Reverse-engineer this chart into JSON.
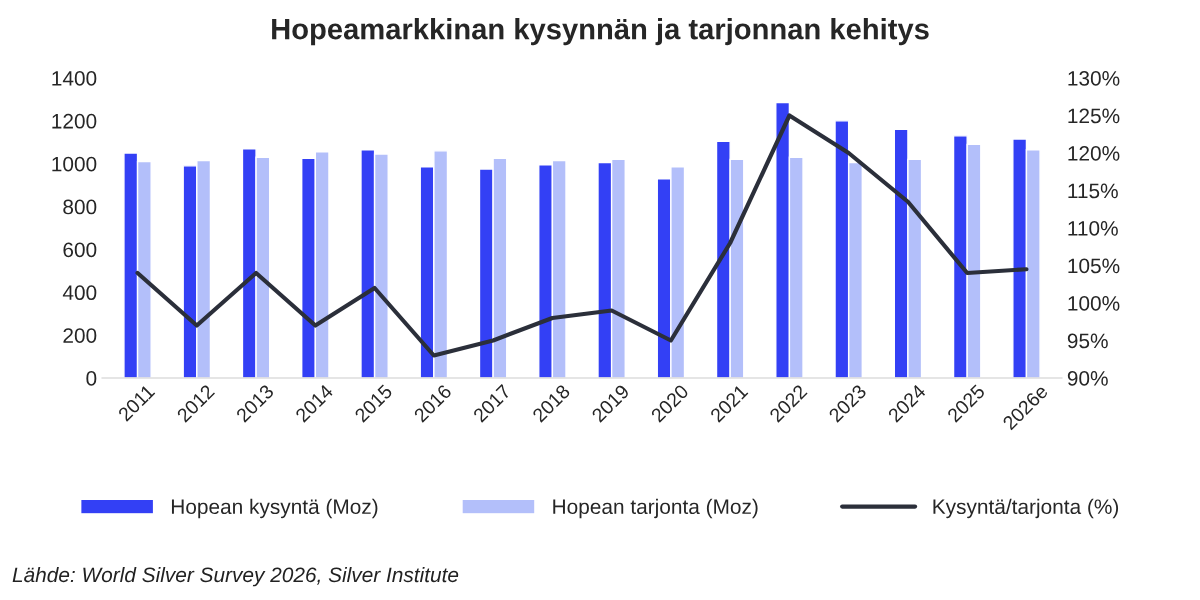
{
  "chart_data": {
    "type": "bar",
    "title": "Hopeamarkkinan kysynnän ja tarjonnan kehitys",
    "categories": [
      "2011",
      "2012",
      "2013",
      "2014",
      "2015",
      "2016",
      "2017",
      "2018",
      "2019",
      "2020",
      "2021",
      "2022",
      "2023",
      "2024",
      "2025",
      "2026e"
    ],
    "series": [
      {
        "name": "Hopean kysyntä (Moz)",
        "color": "#3340f5",
        "values": [
          1050,
          990,
          1070,
          1025,
          1065,
          985,
          975,
          995,
          1005,
          930,
          1105,
          1285,
          1200,
          1160,
          1130,
          1115
        ]
      },
      {
        "name": "Hopean tarjonta (Moz)",
        "color": "#b3bffa",
        "values": [
          1010,
          1015,
          1030,
          1055,
          1045,
          1060,
          1025,
          1015,
          1020,
          985,
          1020,
          1030,
          1005,
          1020,
          1090,
          1065
        ]
      },
      {
        "name": "Kysyntä/tarjonta (%)",
        "type": "line",
        "axis": "y2",
        "color": "#2b2f3a",
        "values": [
          104,
          97,
          104,
          97,
          102,
          93,
          95,
          98,
          99,
          95,
          108,
          125,
          120,
          113.5,
          104,
          104.5
        ]
      }
    ],
    "ylim": [
      0,
      1400
    ],
    "yticks": [
      0,
      200,
      400,
      600,
      800,
      1000,
      1200,
      1400
    ],
    "y2lim": [
      90,
      130
    ],
    "y2ticks": [
      {
        "value": 90,
        "label": "90%"
      },
      {
        "value": 95,
        "label": "95%"
      },
      {
        "value": 100,
        "label": "100%"
      },
      {
        "value": 105,
        "label": "105%"
      },
      {
        "value": 110,
        "label": "110%"
      },
      {
        "value": 115,
        "label": "115%"
      },
      {
        "value": 120,
        "label": "120%"
      },
      {
        "value": 125,
        "label": "125%"
      },
      {
        "value": 130,
        "label": "130%"
      }
    ],
    "grid": false,
    "legend": "bottom",
    "annotations": [
      "Lähde: World Silver Survey 2026, Silver Institute"
    ]
  }
}
